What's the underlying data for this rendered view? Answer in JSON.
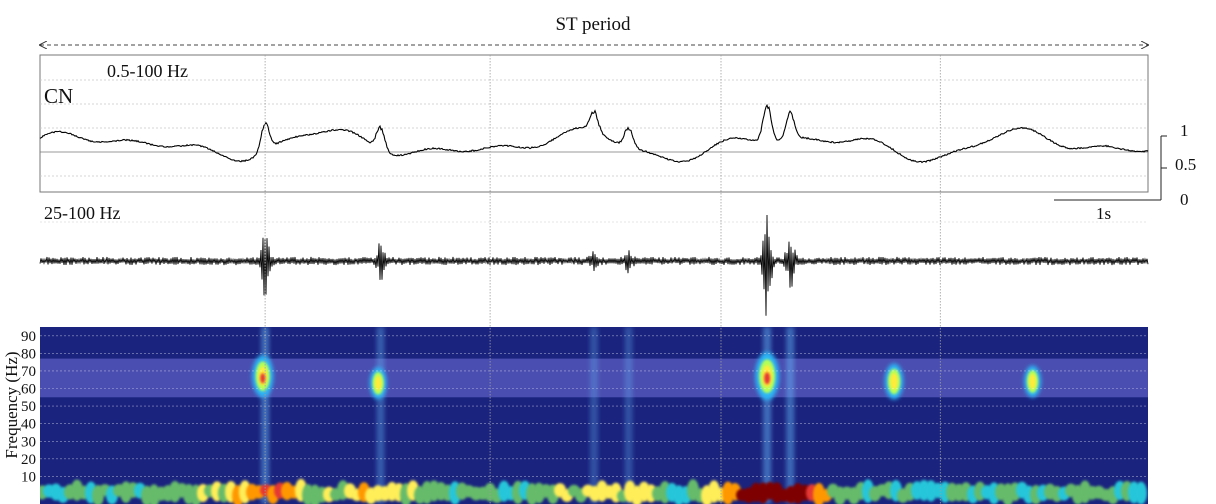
{
  "chart_data": {
    "type": "line",
    "title": "ST period",
    "panels": [
      {
        "id": "broadband",
        "band_label": "0.5-100 Hz",
        "channel_label": "CN",
        "scale_bar": {
          "ticks": [
            "1",
            "0.5",
            "0"
          ],
          "time_label": "1s"
        }
      },
      {
        "id": "highband",
        "band_label": "25-100 Hz",
        "event_times_s": [
          1.95,
          2.95,
          4.8,
          5.1,
          6.3,
          6.5
        ],
        "event_amplitudes": [
          1.0,
          0.5,
          0.25,
          0.25,
          1.8,
          0.9
        ]
      },
      {
        "id": "spectrogram",
        "type": "heatmap",
        "ylabel": "Frequency (Hz)",
        "yticks": [
          10,
          20,
          30,
          40,
          50,
          60,
          70,
          80,
          90
        ],
        "ylim": [
          0,
          95
        ],
        "highlight_band_hz": [
          55,
          77
        ],
        "hotspots": [
          {
            "t_s": 1.93,
            "f_hz": 67,
            "intensity": 0.85
          },
          {
            "t_s": 2.93,
            "f_hz": 63,
            "intensity": 0.6
          },
          {
            "t_s": 6.3,
            "f_hz": 67,
            "intensity": 1.0
          },
          {
            "t_s": 7.4,
            "f_hz": 64,
            "intensity": 0.7
          },
          {
            "t_s": 8.6,
            "f_hz": 64,
            "intensity": 0.6
          }
        ]
      }
    ],
    "event_markers_s": [
      1.95,
      3.9,
      5.9,
      7.8
    ],
    "time_range_s": [
      0,
      9.6
    ],
    "grid": true
  }
}
